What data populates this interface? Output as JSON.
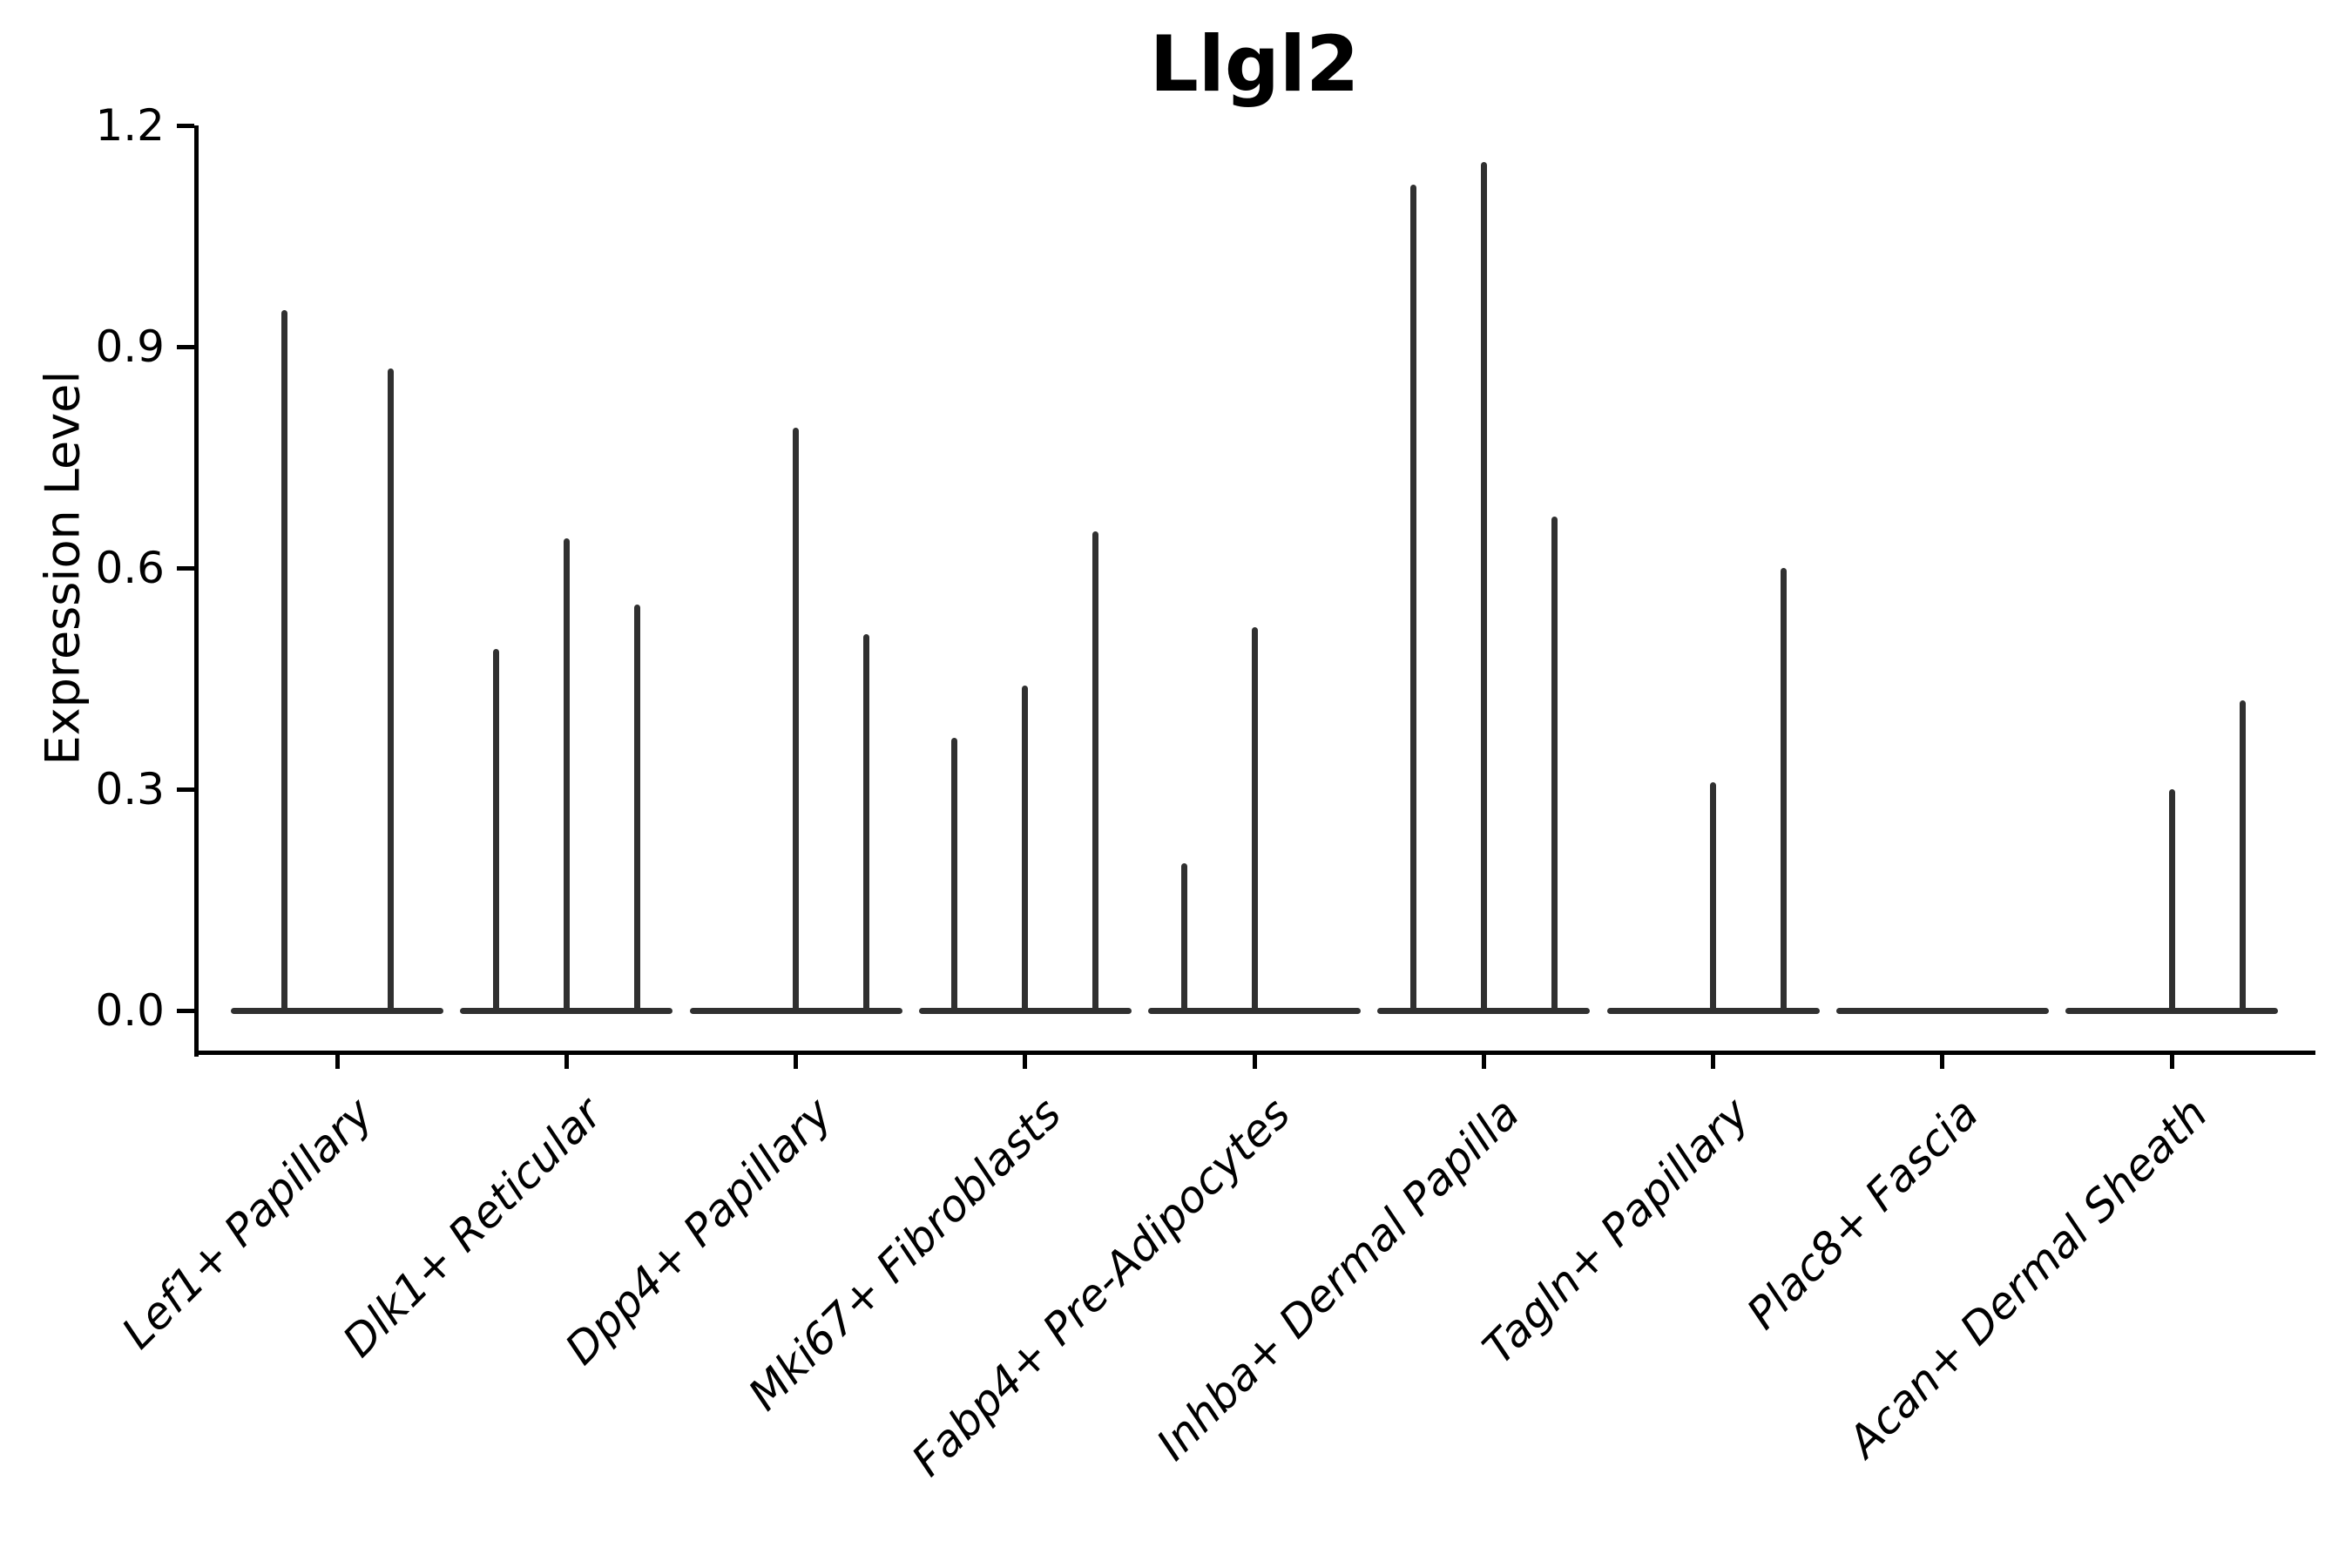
{
  "chart_data": {
    "type": "violin",
    "title": "Llgl2",
    "xlabel": "",
    "ylabel": "Expression Level",
    "ylim": [
      0,
      1.2
    ],
    "yticks": [
      "0.0",
      "0.3",
      "0.6",
      "0.9",
      "1.2"
    ],
    "ytick_values": [
      0.0,
      0.3,
      0.6,
      0.9,
      1.2
    ],
    "grid": false,
    "legend": "none",
    "description": "Violin plot of Llgl2 expression level per cell type; violins are nearly flat at 0 with thin spikes marking maximum expressing cells. Each category holds up to 3 sub-violins (dodged groups); spike value = top of violin tail.",
    "categories": [
      "Lef1+ Papillary",
      "Dlk1+ Reticular",
      "Dpp4+ Papillary",
      "Mki67+ Fibroblasts",
      "Fabp4+ Pre-Adipocytes",
      "Inhba+ Dermal Papilla",
      "Tagln+ Papillary",
      "Plac8+ Fascia",
      "Acan+ Dermal Sheath"
    ],
    "violins": [
      {
        "category": "Lef1+ Papillary",
        "n_groups": 2,
        "spikes": [
          {
            "slot": "left",
            "max": 0.95
          },
          {
            "slot": "right",
            "max": 0.87
          }
        ]
      },
      {
        "category": "Dlk1+ Reticular",
        "n_groups": 3,
        "spikes": [
          {
            "slot": "left",
            "max": 0.49
          },
          {
            "slot": "center",
            "max": 0.64
          },
          {
            "slot": "right",
            "max": 0.55
          }
        ]
      },
      {
        "category": "Dpp4+ Papillary",
        "n_groups": 3,
        "spikes": [
          {
            "slot": "center",
            "max": 0.79
          },
          {
            "slot": "right",
            "max": 0.51
          }
        ]
      },
      {
        "category": "Mki67+ Fibroblasts",
        "n_groups": 3,
        "spikes": [
          {
            "slot": "left",
            "max": 0.37
          },
          {
            "slot": "center",
            "max": 0.44
          },
          {
            "slot": "right",
            "max": 0.65
          }
        ]
      },
      {
        "category": "Fabp4+ Pre-Adipocytes",
        "n_groups": 3,
        "spikes": [
          {
            "slot": "left",
            "max": 0.2
          },
          {
            "slot": "center",
            "max": 0.52
          }
        ]
      },
      {
        "category": "Inhba+ Dermal Papilla",
        "n_groups": 3,
        "spikes": [
          {
            "slot": "left",
            "max": 1.12
          },
          {
            "slot": "center",
            "max": 1.15
          },
          {
            "slot": "right",
            "max": 0.67
          }
        ]
      },
      {
        "category": "Tagln+ Papillary",
        "n_groups": 3,
        "spikes": [
          {
            "slot": "center",
            "max": 0.31
          },
          {
            "slot": "right",
            "max": 0.6
          }
        ]
      },
      {
        "category": "Plac8+ Fascia",
        "n_groups": 3,
        "spikes": []
      },
      {
        "category": "Acan+ Dermal Sheath",
        "n_groups": 3,
        "spikes": [
          {
            "slot": "center",
            "max": 0.3
          },
          {
            "slot": "right",
            "max": 0.42
          }
        ]
      }
    ],
    "colors": {
      "violin": "#303030",
      "axis": "#000000",
      "text": "#000000",
      "background": "#ffffff"
    }
  }
}
